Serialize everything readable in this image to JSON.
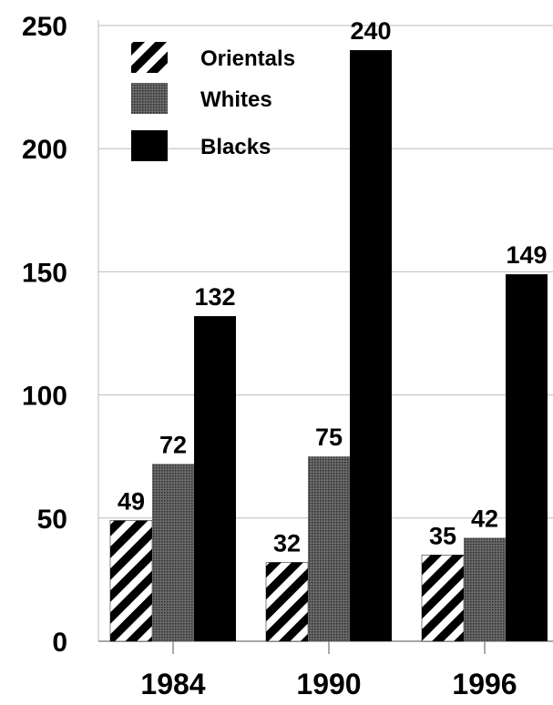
{
  "chart_data": {
    "type": "bar",
    "categories": [
      "1984",
      "1990",
      "1996"
    ],
    "series": [
      {
        "name": "Orientals",
        "values": [
          49,
          32,
          35
        ],
        "fill": "hatch"
      },
      {
        "name": "Whites",
        "values": [
          72,
          75,
          42
        ],
        "fill": "dotted-gray"
      },
      {
        "name": "Blacks",
        "values": [
          132,
          240,
          149
        ],
        "fill": "solid-black"
      }
    ],
    "ylim": [
      0,
      250
    ],
    "yticks": [
      "0",
      "50",
      "100",
      "150",
      "200",
      "250"
    ],
    "grid": true,
    "legend_position": "top-left",
    "colors": {
      "black": "#000000",
      "gray": "#555555",
      "grid": "#bbbbbb"
    }
  }
}
